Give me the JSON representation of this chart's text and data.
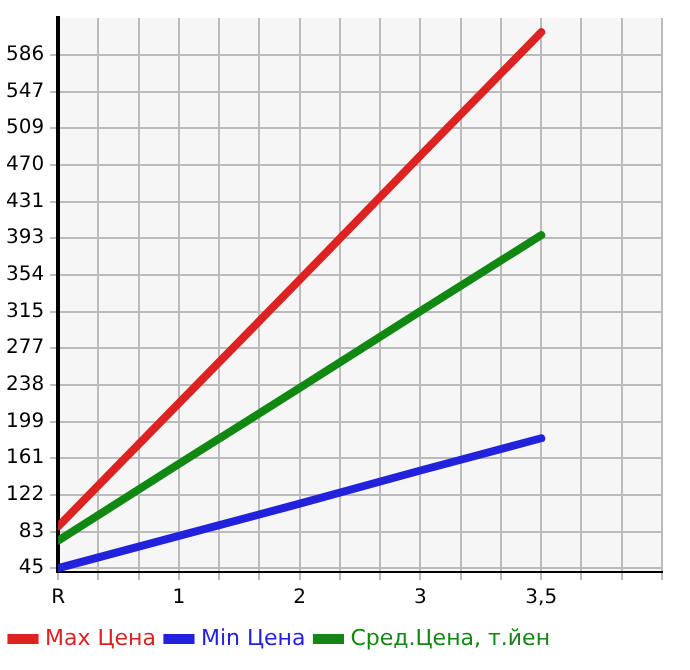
{
  "chart_data": {
    "type": "line",
    "categories": [
      "R",
      "1",
      "2",
      "3",
      "3,5"
    ],
    "series": [
      {
        "name": "Max Цена",
        "color": "#dd2222",
        "values": [
          89,
          219,
          349,
          480,
          610
        ]
      },
      {
        "name": "Min Цена",
        "color": "#2222dd",
        "values": [
          45,
          79,
          113,
          148,
          182
        ]
      },
      {
        "name": "Сред.Цена, т.йен",
        "color": "#118811",
        "values": [
          74,
          155,
          235,
          316,
          396
        ]
      }
    ],
    "ylim": [
      41,
      625
    ],
    "yticks": [
      45,
      83,
      122,
      161,
      199,
      238,
      277,
      315,
      354,
      393,
      431,
      470,
      509,
      547,
      586
    ],
    "grid": true,
    "legend": "bottom",
    "marker": "none",
    "line_style": "solid"
  }
}
